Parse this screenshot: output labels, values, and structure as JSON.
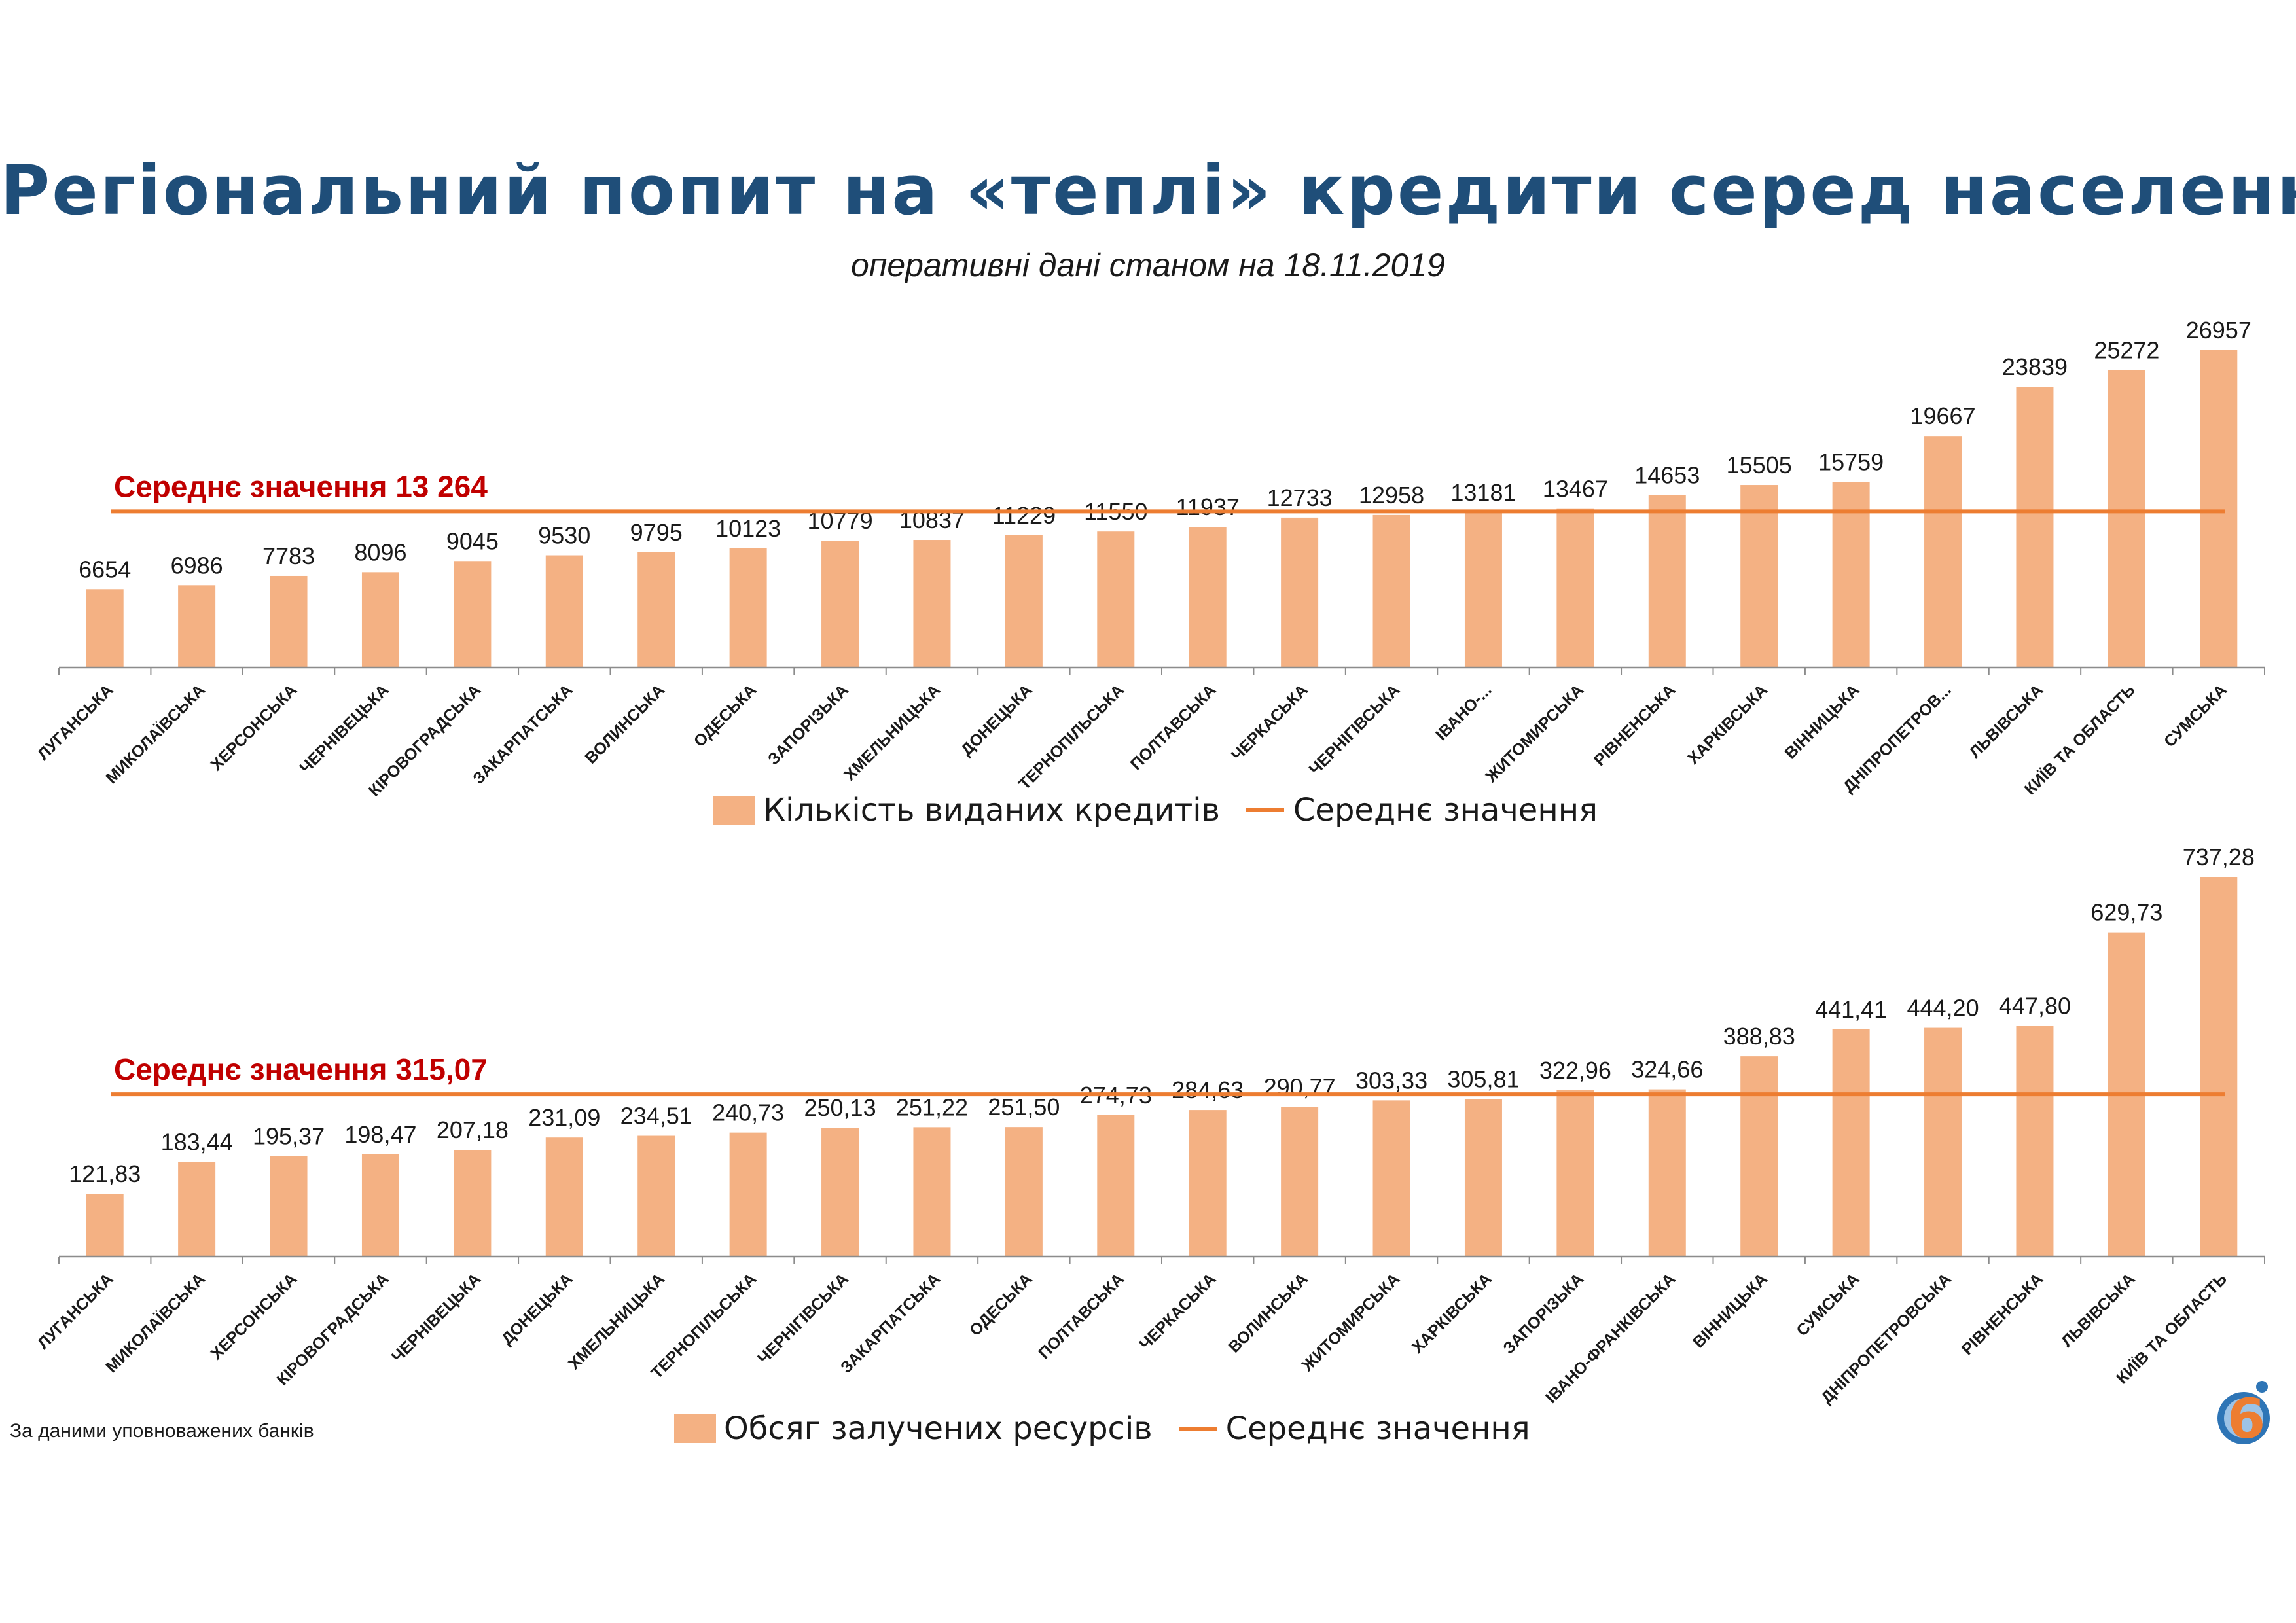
{
  "title": "Регіональний попит на «теплі» кредити серед населення",
  "subtitle": "оперативні дані станом на 18.11.2019",
  "footnote": "За даними уповноважених банків",
  "colors": {
    "bar": "#f4b183",
    "average_line": "#ed7d31",
    "average_label": "#c00000",
    "title": "#1f4e79"
  },
  "logo": {
    "icon": "brand-logo-6-icon",
    "glyph": "6"
  },
  "chart_data": [
    {
      "type": "bar",
      "categories": [
        "ЛУГАНСЬКА",
        "МИКОЛАЇВСЬКА",
        "ХЕРСОНСЬКА",
        "ЧЕРНІВЕЦЬКА",
        "КІРОВОГРАДСЬКА",
        "ЗАКАРПАТСЬКА",
        "ВОЛИНСЬКА",
        "ОДЕСЬКА",
        "ЗАПОРІЗЬКА",
        "ХМЕЛЬНИЦЬКА",
        "ДОНЕЦЬКА",
        "ТЕРНОПІЛЬСЬКА",
        "ПОЛТАВСЬКА",
        "ЧЕРКАСЬКА",
        "ЧЕРНІГІВСЬКА",
        "ІВАНО-...",
        "ЖИТОМИРСЬКА",
        "РІВНЕНСЬКА",
        "ХАРКІВСЬКА",
        "ВІННИЦЬКА",
        "ДНІПРОПЕТРОВ...",
        "ЛЬВІВСЬКА",
        "КИЇВ ТА ОБЛАСТЬ",
        "СУМСЬКА"
      ],
      "series": [
        {
          "name": "Кількість виданих кредитів",
          "values": [
            6654,
            6986,
            7783,
            8096,
            9045,
            9530,
            9795,
            10123,
            10779,
            10837,
            11229,
            11550,
            11937,
            12733,
            12958,
            13181,
            13467,
            14653,
            15505,
            15759,
            19667,
            23839,
            25272,
            26957
          ],
          "labels": [
            "6654",
            "6986",
            "7783",
            "8096",
            "9045",
            "9530",
            "9795",
            "10123",
            "10779",
            "10837",
            "11229",
            "11550",
            "11937",
            "12733",
            "12958",
            "13181",
            "13467",
            "14653",
            "15505",
            "15759",
            "19667",
            "23839",
            "25272",
            "26957"
          ]
        },
        {
          "name": "Середнє значення",
          "type": "line",
          "value": 13264
        }
      ],
      "average_label": "Середнє значення 13 264",
      "ylim": [
        0,
        26957
      ]
    },
    {
      "type": "bar",
      "categories": [
        "ЛУГАНСЬКА",
        "МИКОЛАЇВСЬКА",
        "ХЕРСОНСЬКА",
        "КІРОВОГРАДСЬКА",
        "ЧЕРНІВЕЦЬКА",
        "ДОНЕЦЬКА",
        "ХМЕЛЬНИЦЬКА",
        "ТЕРНОПІЛЬСЬКА",
        "ЧЕРНІГІВСЬКА",
        "ЗАКАРПАТСЬКА",
        "ОДЕСЬКА",
        "ПОЛТАВСЬКА",
        "ЧЕРКАСЬКА",
        "ВОЛИНСЬКА",
        "ЖИТОМИРСЬКА",
        "ХАРКІВСЬКА",
        "ЗАПОРІЗЬКА",
        "ІВАНО-ФРАНКІВСЬКА",
        "ВІННИЦЬКА",
        "СУМСЬКА",
        "ДНІПРОПЕТРОВСЬКА",
        "РІВНЕНСЬКА",
        "ЛЬВІВСЬКА",
        "КИЇВ ТА ОБЛАСТЬ"
      ],
      "series": [
        {
          "name": "Обсяг залучених ресурсів",
          "values": [
            121.83,
            183.44,
            195.37,
            198.47,
            207.18,
            231.09,
            234.51,
            240.73,
            250.13,
            251.22,
            251.5,
            274.73,
            284.63,
            290.77,
            303.33,
            305.81,
            322.96,
            324.66,
            388.83,
            441.41,
            444.2,
            447.8,
            629.73,
            737.28
          ],
          "labels": [
            "121,83",
            "183,44",
            "195,37",
            "198,47",
            "207,18",
            "231,09",
            "234,51",
            "240,73",
            "250,13",
            "251,22",
            "251,50",
            "274,73",
            "284,63",
            "290,77",
            "303,33",
            "305,81",
            "322,96",
            "324,66",
            "388,83",
            "441,41",
            "444,20",
            "447,80",
            "629,73",
            "737,28"
          ]
        },
        {
          "name": "Середнє значення",
          "type": "line",
          "value": 315.07
        }
      ],
      "average_label": "Середнє значення  315,07",
      "ylim": [
        0,
        737.28
      ]
    }
  ]
}
